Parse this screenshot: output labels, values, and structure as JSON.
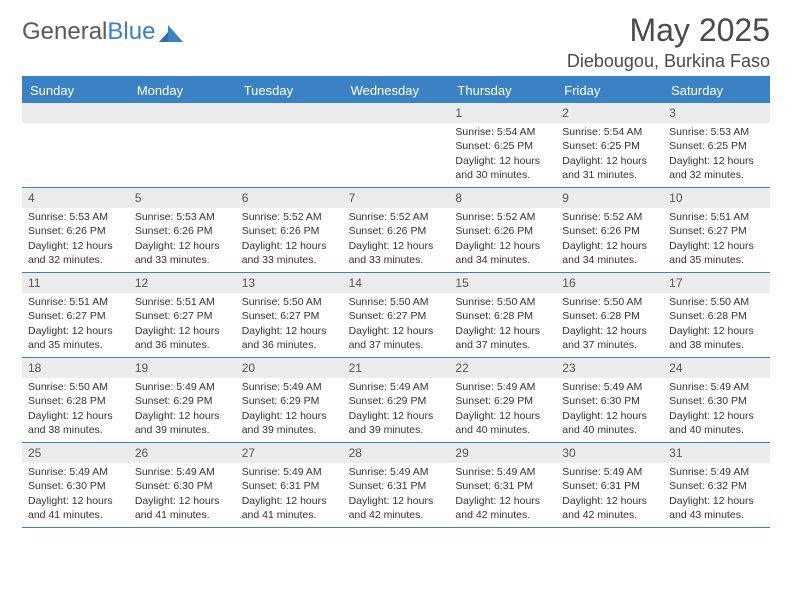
{
  "logo": {
    "word1": "General",
    "word2": "Blue"
  },
  "header": {
    "title": "May 2025",
    "location": "Diebougou, Burkina Faso"
  },
  "colors": {
    "accent": "#3b82c4",
    "header_bg": "#3b82c4",
    "header_text": "#ffffff",
    "daynum_bg": "#ececec",
    "text": "#333333",
    "page_bg": "#ffffff"
  },
  "weekdays": [
    "Sunday",
    "Monday",
    "Tuesday",
    "Wednesday",
    "Thursday",
    "Friday",
    "Saturday"
  ],
  "weeks": [
    [
      null,
      null,
      null,
      null,
      {
        "n": "1",
        "sunrise": "Sunrise: 5:54 AM",
        "sunset": "Sunset: 6:25 PM",
        "daylight": "Daylight: 12 hours and 30 minutes."
      },
      {
        "n": "2",
        "sunrise": "Sunrise: 5:54 AM",
        "sunset": "Sunset: 6:25 PM",
        "daylight": "Daylight: 12 hours and 31 minutes."
      },
      {
        "n": "3",
        "sunrise": "Sunrise: 5:53 AM",
        "sunset": "Sunset: 6:25 PM",
        "daylight": "Daylight: 12 hours and 32 minutes."
      }
    ],
    [
      {
        "n": "4",
        "sunrise": "Sunrise: 5:53 AM",
        "sunset": "Sunset: 6:26 PM",
        "daylight": "Daylight: 12 hours and 32 minutes."
      },
      {
        "n": "5",
        "sunrise": "Sunrise: 5:53 AM",
        "sunset": "Sunset: 6:26 PM",
        "daylight": "Daylight: 12 hours and 33 minutes."
      },
      {
        "n": "6",
        "sunrise": "Sunrise: 5:52 AM",
        "sunset": "Sunset: 6:26 PM",
        "daylight": "Daylight: 12 hours and 33 minutes."
      },
      {
        "n": "7",
        "sunrise": "Sunrise: 5:52 AM",
        "sunset": "Sunset: 6:26 PM",
        "daylight": "Daylight: 12 hours and 33 minutes."
      },
      {
        "n": "8",
        "sunrise": "Sunrise: 5:52 AM",
        "sunset": "Sunset: 6:26 PM",
        "daylight": "Daylight: 12 hours and 34 minutes."
      },
      {
        "n": "9",
        "sunrise": "Sunrise: 5:52 AM",
        "sunset": "Sunset: 6:26 PM",
        "daylight": "Daylight: 12 hours and 34 minutes."
      },
      {
        "n": "10",
        "sunrise": "Sunrise: 5:51 AM",
        "sunset": "Sunset: 6:27 PM",
        "daylight": "Daylight: 12 hours and 35 minutes."
      }
    ],
    [
      {
        "n": "11",
        "sunrise": "Sunrise: 5:51 AM",
        "sunset": "Sunset: 6:27 PM",
        "daylight": "Daylight: 12 hours and 35 minutes."
      },
      {
        "n": "12",
        "sunrise": "Sunrise: 5:51 AM",
        "sunset": "Sunset: 6:27 PM",
        "daylight": "Daylight: 12 hours and 36 minutes."
      },
      {
        "n": "13",
        "sunrise": "Sunrise: 5:50 AM",
        "sunset": "Sunset: 6:27 PM",
        "daylight": "Daylight: 12 hours and 36 minutes."
      },
      {
        "n": "14",
        "sunrise": "Sunrise: 5:50 AM",
        "sunset": "Sunset: 6:27 PM",
        "daylight": "Daylight: 12 hours and 37 minutes."
      },
      {
        "n": "15",
        "sunrise": "Sunrise: 5:50 AM",
        "sunset": "Sunset: 6:28 PM",
        "daylight": "Daylight: 12 hours and 37 minutes."
      },
      {
        "n": "16",
        "sunrise": "Sunrise: 5:50 AM",
        "sunset": "Sunset: 6:28 PM",
        "daylight": "Daylight: 12 hours and 37 minutes."
      },
      {
        "n": "17",
        "sunrise": "Sunrise: 5:50 AM",
        "sunset": "Sunset: 6:28 PM",
        "daylight": "Daylight: 12 hours and 38 minutes."
      }
    ],
    [
      {
        "n": "18",
        "sunrise": "Sunrise: 5:50 AM",
        "sunset": "Sunset: 6:28 PM",
        "daylight": "Daylight: 12 hours and 38 minutes."
      },
      {
        "n": "19",
        "sunrise": "Sunrise: 5:49 AM",
        "sunset": "Sunset: 6:29 PM",
        "daylight": "Daylight: 12 hours and 39 minutes."
      },
      {
        "n": "20",
        "sunrise": "Sunrise: 5:49 AM",
        "sunset": "Sunset: 6:29 PM",
        "daylight": "Daylight: 12 hours and 39 minutes."
      },
      {
        "n": "21",
        "sunrise": "Sunrise: 5:49 AM",
        "sunset": "Sunset: 6:29 PM",
        "daylight": "Daylight: 12 hours and 39 minutes."
      },
      {
        "n": "22",
        "sunrise": "Sunrise: 5:49 AM",
        "sunset": "Sunset: 6:29 PM",
        "daylight": "Daylight: 12 hours and 40 minutes."
      },
      {
        "n": "23",
        "sunrise": "Sunrise: 5:49 AM",
        "sunset": "Sunset: 6:30 PM",
        "daylight": "Daylight: 12 hours and 40 minutes."
      },
      {
        "n": "24",
        "sunrise": "Sunrise: 5:49 AM",
        "sunset": "Sunset: 6:30 PM",
        "daylight": "Daylight: 12 hours and 40 minutes."
      }
    ],
    [
      {
        "n": "25",
        "sunrise": "Sunrise: 5:49 AM",
        "sunset": "Sunset: 6:30 PM",
        "daylight": "Daylight: 12 hours and 41 minutes."
      },
      {
        "n": "26",
        "sunrise": "Sunrise: 5:49 AM",
        "sunset": "Sunset: 6:30 PM",
        "daylight": "Daylight: 12 hours and 41 minutes."
      },
      {
        "n": "27",
        "sunrise": "Sunrise: 5:49 AM",
        "sunset": "Sunset: 6:31 PM",
        "daylight": "Daylight: 12 hours and 41 minutes."
      },
      {
        "n": "28",
        "sunrise": "Sunrise: 5:49 AM",
        "sunset": "Sunset: 6:31 PM",
        "daylight": "Daylight: 12 hours and 42 minutes."
      },
      {
        "n": "29",
        "sunrise": "Sunrise: 5:49 AM",
        "sunset": "Sunset: 6:31 PM",
        "daylight": "Daylight: 12 hours and 42 minutes."
      },
      {
        "n": "30",
        "sunrise": "Sunrise: 5:49 AM",
        "sunset": "Sunset: 6:31 PM",
        "daylight": "Daylight: 12 hours and 42 minutes."
      },
      {
        "n": "31",
        "sunrise": "Sunrise: 5:49 AM",
        "sunset": "Sunset: 6:32 PM",
        "daylight": "Daylight: 12 hours and 43 minutes."
      }
    ]
  ]
}
